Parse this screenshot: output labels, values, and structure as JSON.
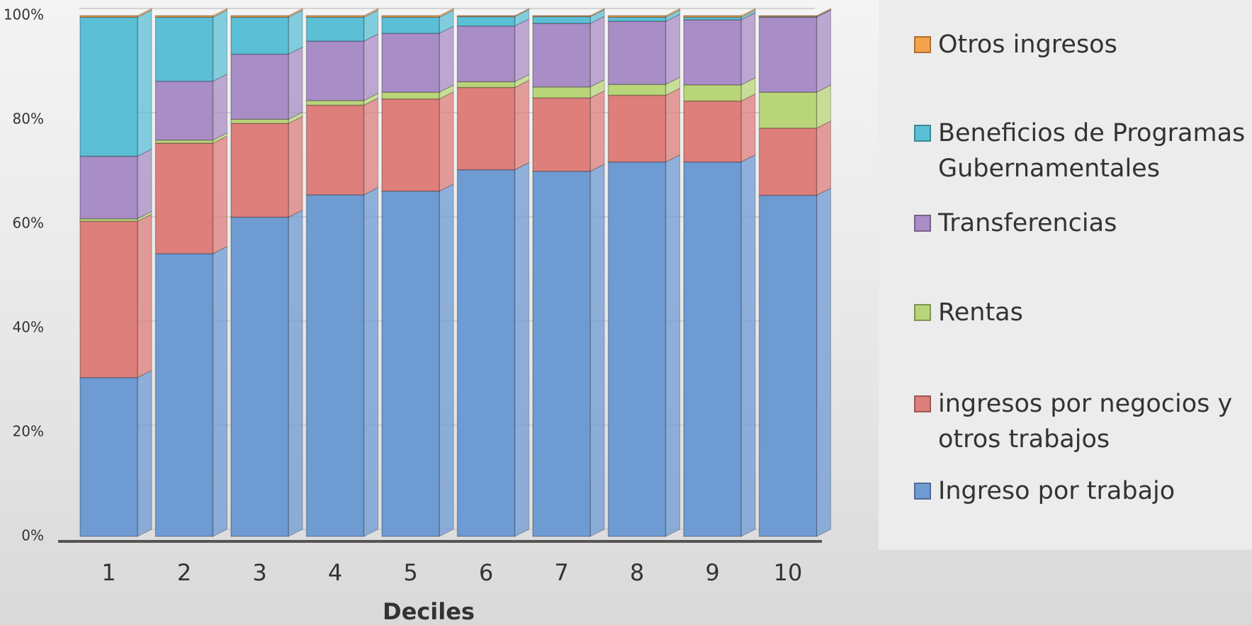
{
  "chart_data": {
    "type": "stacked_bar",
    "x_label": "Deciles",
    "categories": [
      "1",
      "2",
      "3",
      "4",
      "5",
      "6",
      "7",
      "8",
      "9",
      "10"
    ],
    "ylim": [
      0,
      100
    ],
    "yticks": [
      {
        "value": 0,
        "label": "0%"
      },
      {
        "value": 20,
        "label": "20%"
      },
      {
        "value": 40,
        "label": "40%"
      },
      {
        "value": 60,
        "label": "60%"
      },
      {
        "value": 80,
        "label": "80%"
      },
      {
        "value": 100,
        "label": "100%"
      }
    ],
    "grid": true,
    "legend": "right",
    "series": [
      {
        "name": "Ingreso por trabajo",
        "color": "#6f9bd3",
        "values": [
          30.5,
          54.3,
          61.3,
          65.6,
          66.3,
          70.4,
          70.1,
          71.9,
          71.9,
          65.5
        ]
      },
      {
        "name": "ingresos por negocios y otros trabajos",
        "color": "#de7f7b",
        "values": [
          30,
          21.2,
          18,
          17.2,
          17.7,
          15.8,
          14.1,
          12.8,
          11.7,
          12.9
        ]
      },
      {
        "name": "Rentas",
        "color": "#b9d57a",
        "values": [
          0.5,
          0.6,
          0.8,
          0.9,
          1.3,
          1.1,
          2.1,
          2.1,
          3.1,
          6.9
        ]
      },
      {
        "name": "Transferencias",
        "color": "#a98dc6",
        "values": [
          12,
          11.3,
          12.5,
          11.4,
          11.3,
          10.7,
          12.2,
          12.1,
          12.5,
          14.4
        ]
      },
      {
        "name": "Beneficios de Programas Gubernamentales",
        "color": "#5bc0d6",
        "values": [
          26.7,
          12.3,
          7.1,
          4.6,
          3.1,
          1.8,
          1.3,
          0.8,
          0.5,
          0.1
        ]
      },
      {
        "name": "Otros ingresos",
        "color": "#f5a24b",
        "values": [
          0.3,
          0.3,
          0.3,
          0.3,
          0.3,
          0.2,
          0.2,
          0.3,
          0.3,
          0.2
        ]
      }
    ]
  }
}
